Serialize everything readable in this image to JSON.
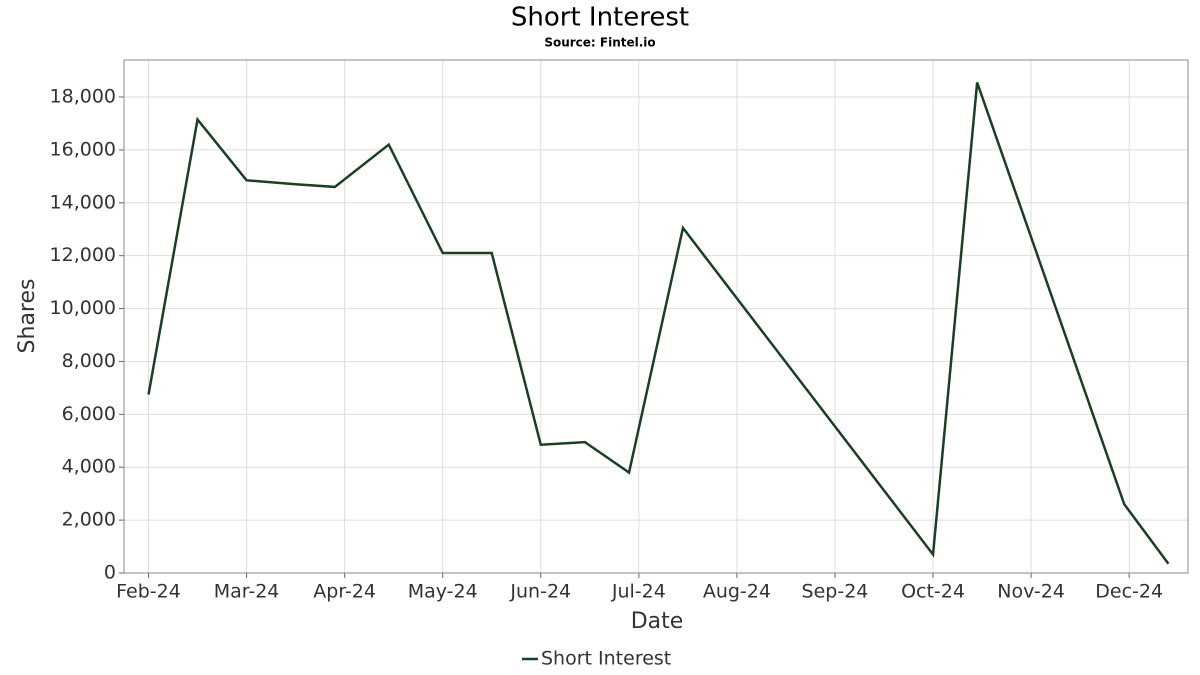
{
  "chart_data": {
    "type": "line",
    "title": "Short Interest",
    "subtitle": "Source: Fintel.io",
    "x_label": "Date",
    "y_label": "Shares",
    "x": [
      0,
      0.5,
      1,
      1.5,
      1.9,
      2.45,
      3,
      3.5,
      4,
      4.45,
      4.9,
      5.45,
      8,
      8.45,
      9.95,
      10.4
    ],
    "series": [
      {
        "name": "Short Interest",
        "color": "#1b3f22",
        "values": [
          6750,
          17150,
          14850,
          14700,
          14600,
          16200,
          12100,
          12100,
          4850,
          4950,
          3800,
          13050,
          700,
          18550,
          2600,
          350
        ]
      }
    ],
    "xlim": [
      -0.25,
      10.6
    ],
    "xticks": [
      {
        "value": 0,
        "label": "Feb-24"
      },
      {
        "value": 1,
        "label": "Mar-24"
      },
      {
        "value": 2,
        "label": "Apr-24"
      },
      {
        "value": 3,
        "label": "May-24"
      },
      {
        "value": 4,
        "label": "Jun-24"
      },
      {
        "value": 5,
        "label": "Jul-24"
      },
      {
        "value": 6,
        "label": "Aug-24"
      },
      {
        "value": 7,
        "label": "Sep-24"
      },
      {
        "value": 8,
        "label": "Oct-24"
      },
      {
        "value": 9,
        "label": "Nov-24"
      },
      {
        "value": 10,
        "label": "Dec-24"
      }
    ],
    "ylim": [
      0,
      19400
    ],
    "yticks": [
      0,
      {
        "value": 2000,
        "label": "2,000"
      },
      {
        "value": 4000,
        "label": "4,000"
      },
      {
        "value": 6000,
        "label": "6,000"
      },
      {
        "value": 8000,
        "label": "8,000"
      },
      {
        "value": 10000,
        "label": "10,000"
      },
      {
        "value": 12000,
        "label": "12,000"
      },
      {
        "value": 14000,
        "label": "14,000"
      },
      {
        "value": 16000,
        "label": "16,000"
      },
      {
        "value": 18000,
        "label": "18,000"
      }
    ],
    "grid": true,
    "legend": "bottom"
  }
}
